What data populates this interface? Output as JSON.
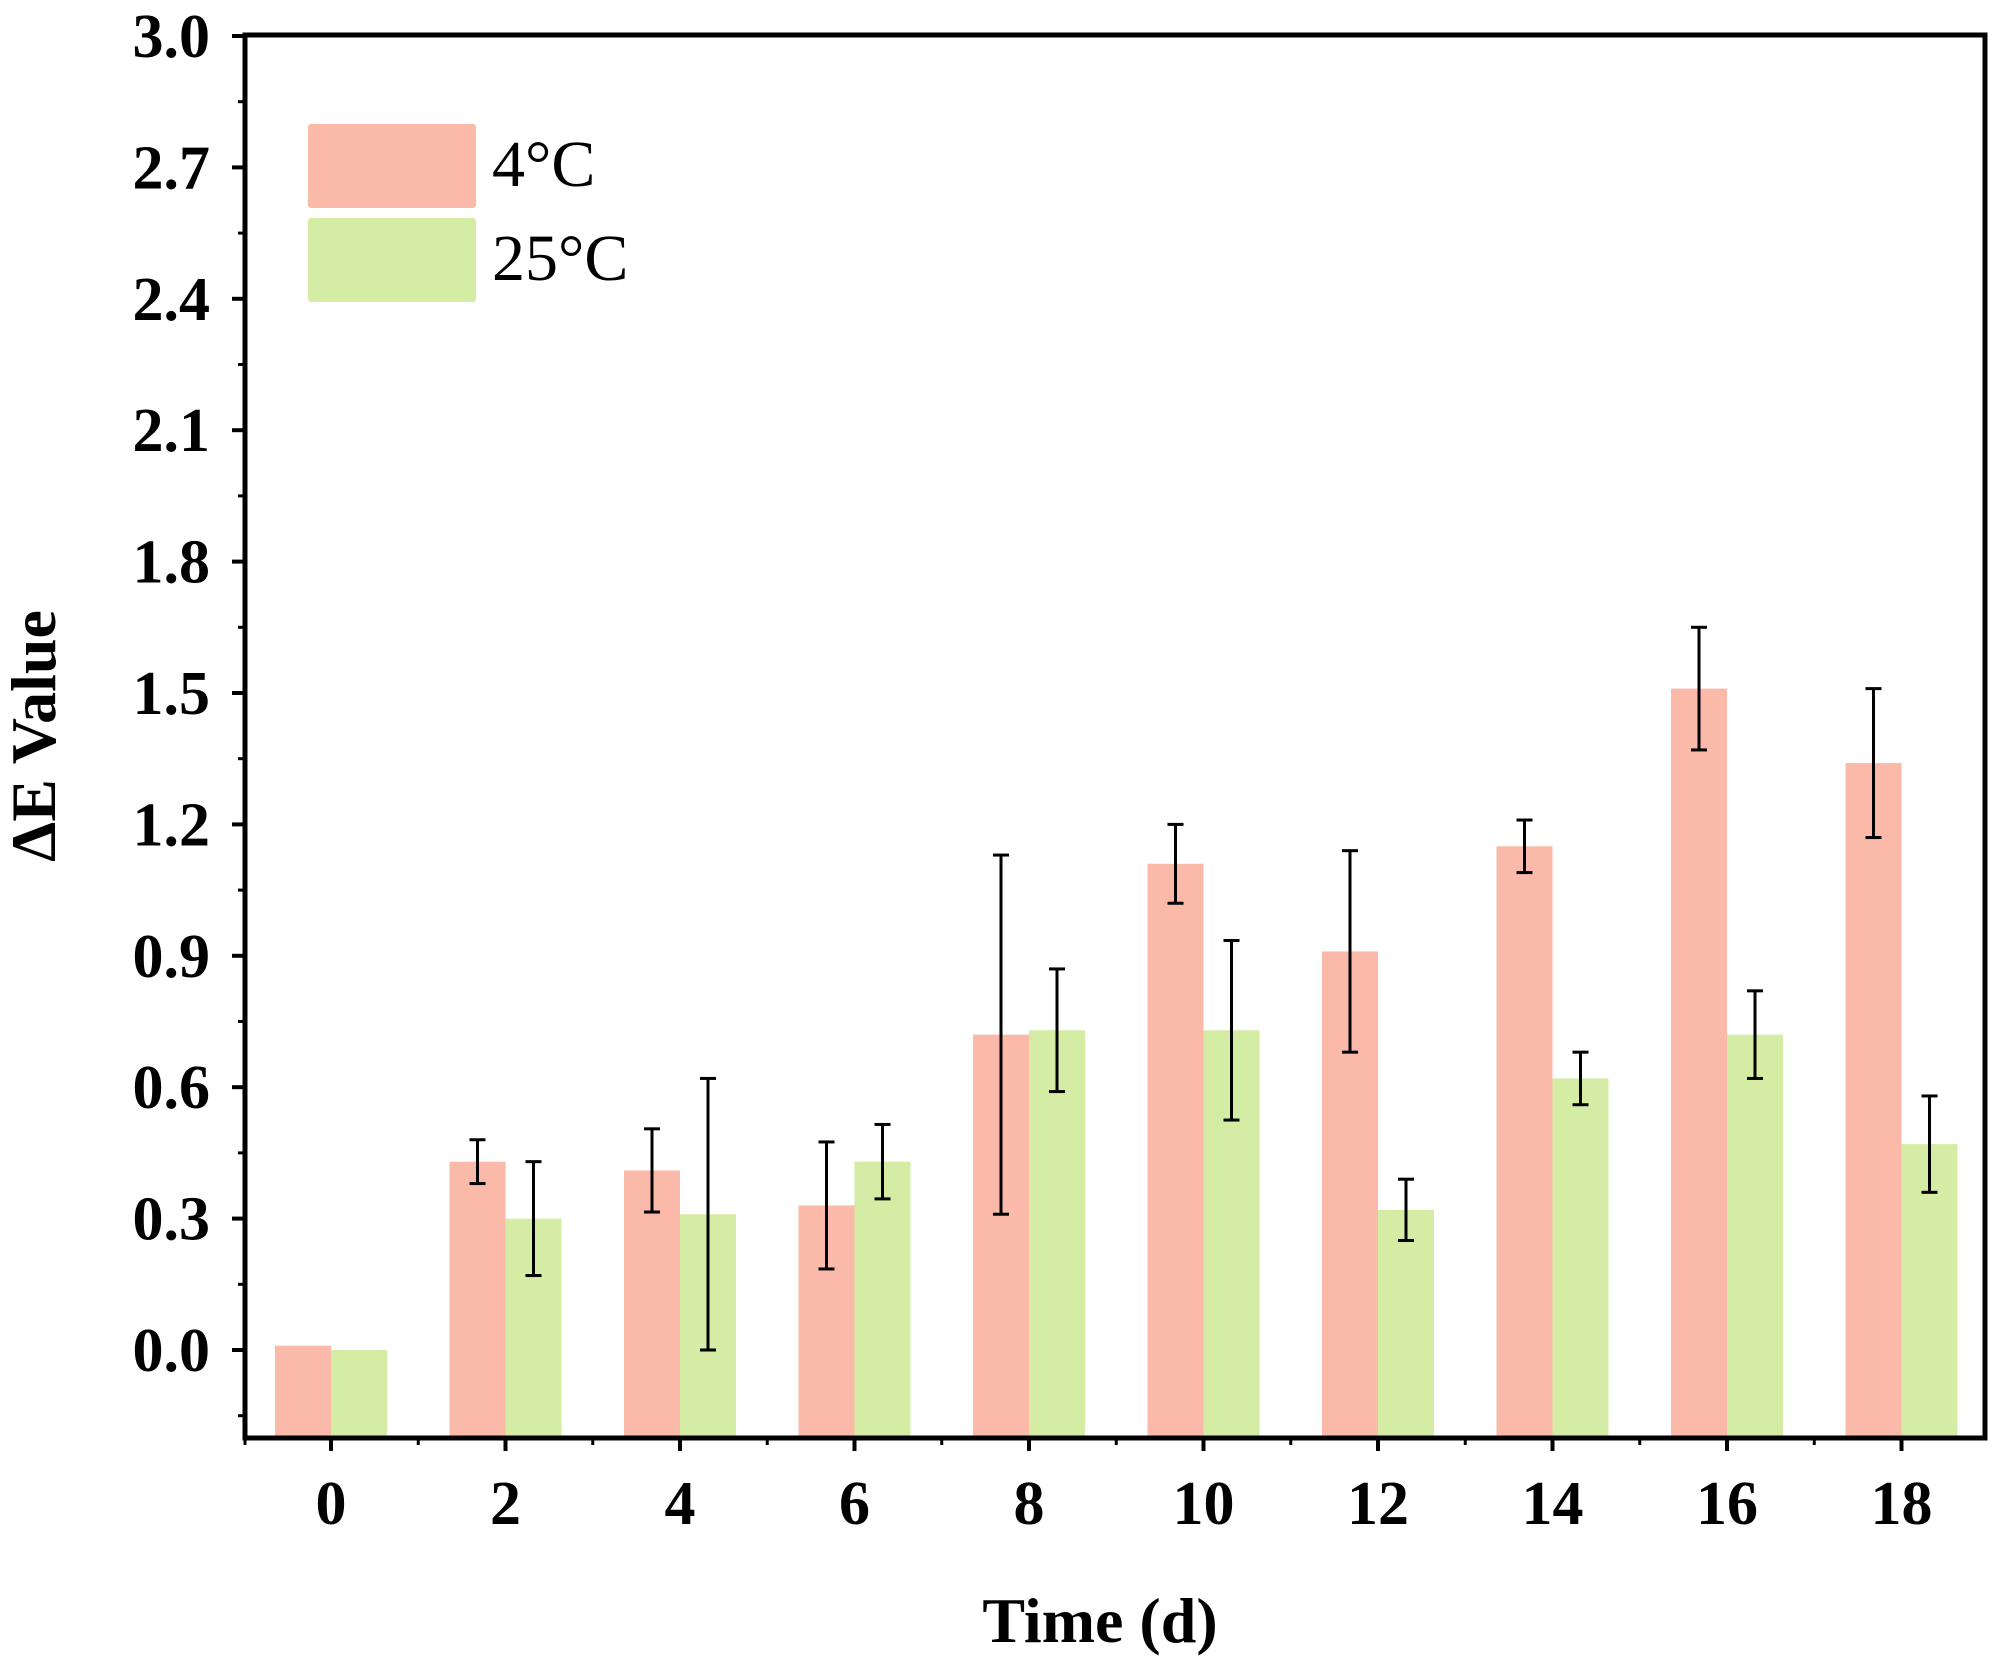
{
  "chart_data": {
    "type": "bar",
    "title": "",
    "xlabel": "Time (d)",
    "ylabel": "ΔE Value",
    "categories": [
      "0",
      "2",
      "4",
      "6",
      "8",
      "10",
      "12",
      "14",
      "16",
      "18"
    ],
    "ylim": [
      -0.2,
      3.0
    ],
    "yticks": [
      0.0,
      0.3,
      0.6,
      0.9,
      1.2,
      1.5,
      1.8,
      2.1,
      2.4,
      2.7,
      3.0
    ],
    "ytick_labels": [
      "0.0",
      "0.3",
      "0.6",
      "0.9",
      "1.2",
      "1.5",
      "1.8",
      "2.1",
      "2.4",
      "2.7",
      "3.0"
    ],
    "grid": false,
    "legend_position": "top-left",
    "series": [
      {
        "name": "4°C",
        "color": "#fbbaa9",
        "values": [
          0.01,
          0.43,
          0.41,
          0.33,
          0.72,
          1.11,
          0.91,
          1.15,
          1.51,
          1.34
        ],
        "errors": [
          0.0,
          0.05,
          0.095,
          0.145,
          0.41,
          0.09,
          0.23,
          0.06,
          0.14,
          0.17
        ]
      },
      {
        "name": "25°C",
        "color": "#d4eca3",
        "values": [
          0.0,
          0.3,
          0.31,
          0.43,
          0.73,
          0.73,
          0.32,
          0.62,
          0.72,
          0.47
        ],
        "errors": [
          0.0,
          0.13,
          0.31,
          0.085,
          0.14,
          0.205,
          0.07,
          0.06,
          0.1,
          0.11
        ]
      }
    ]
  }
}
